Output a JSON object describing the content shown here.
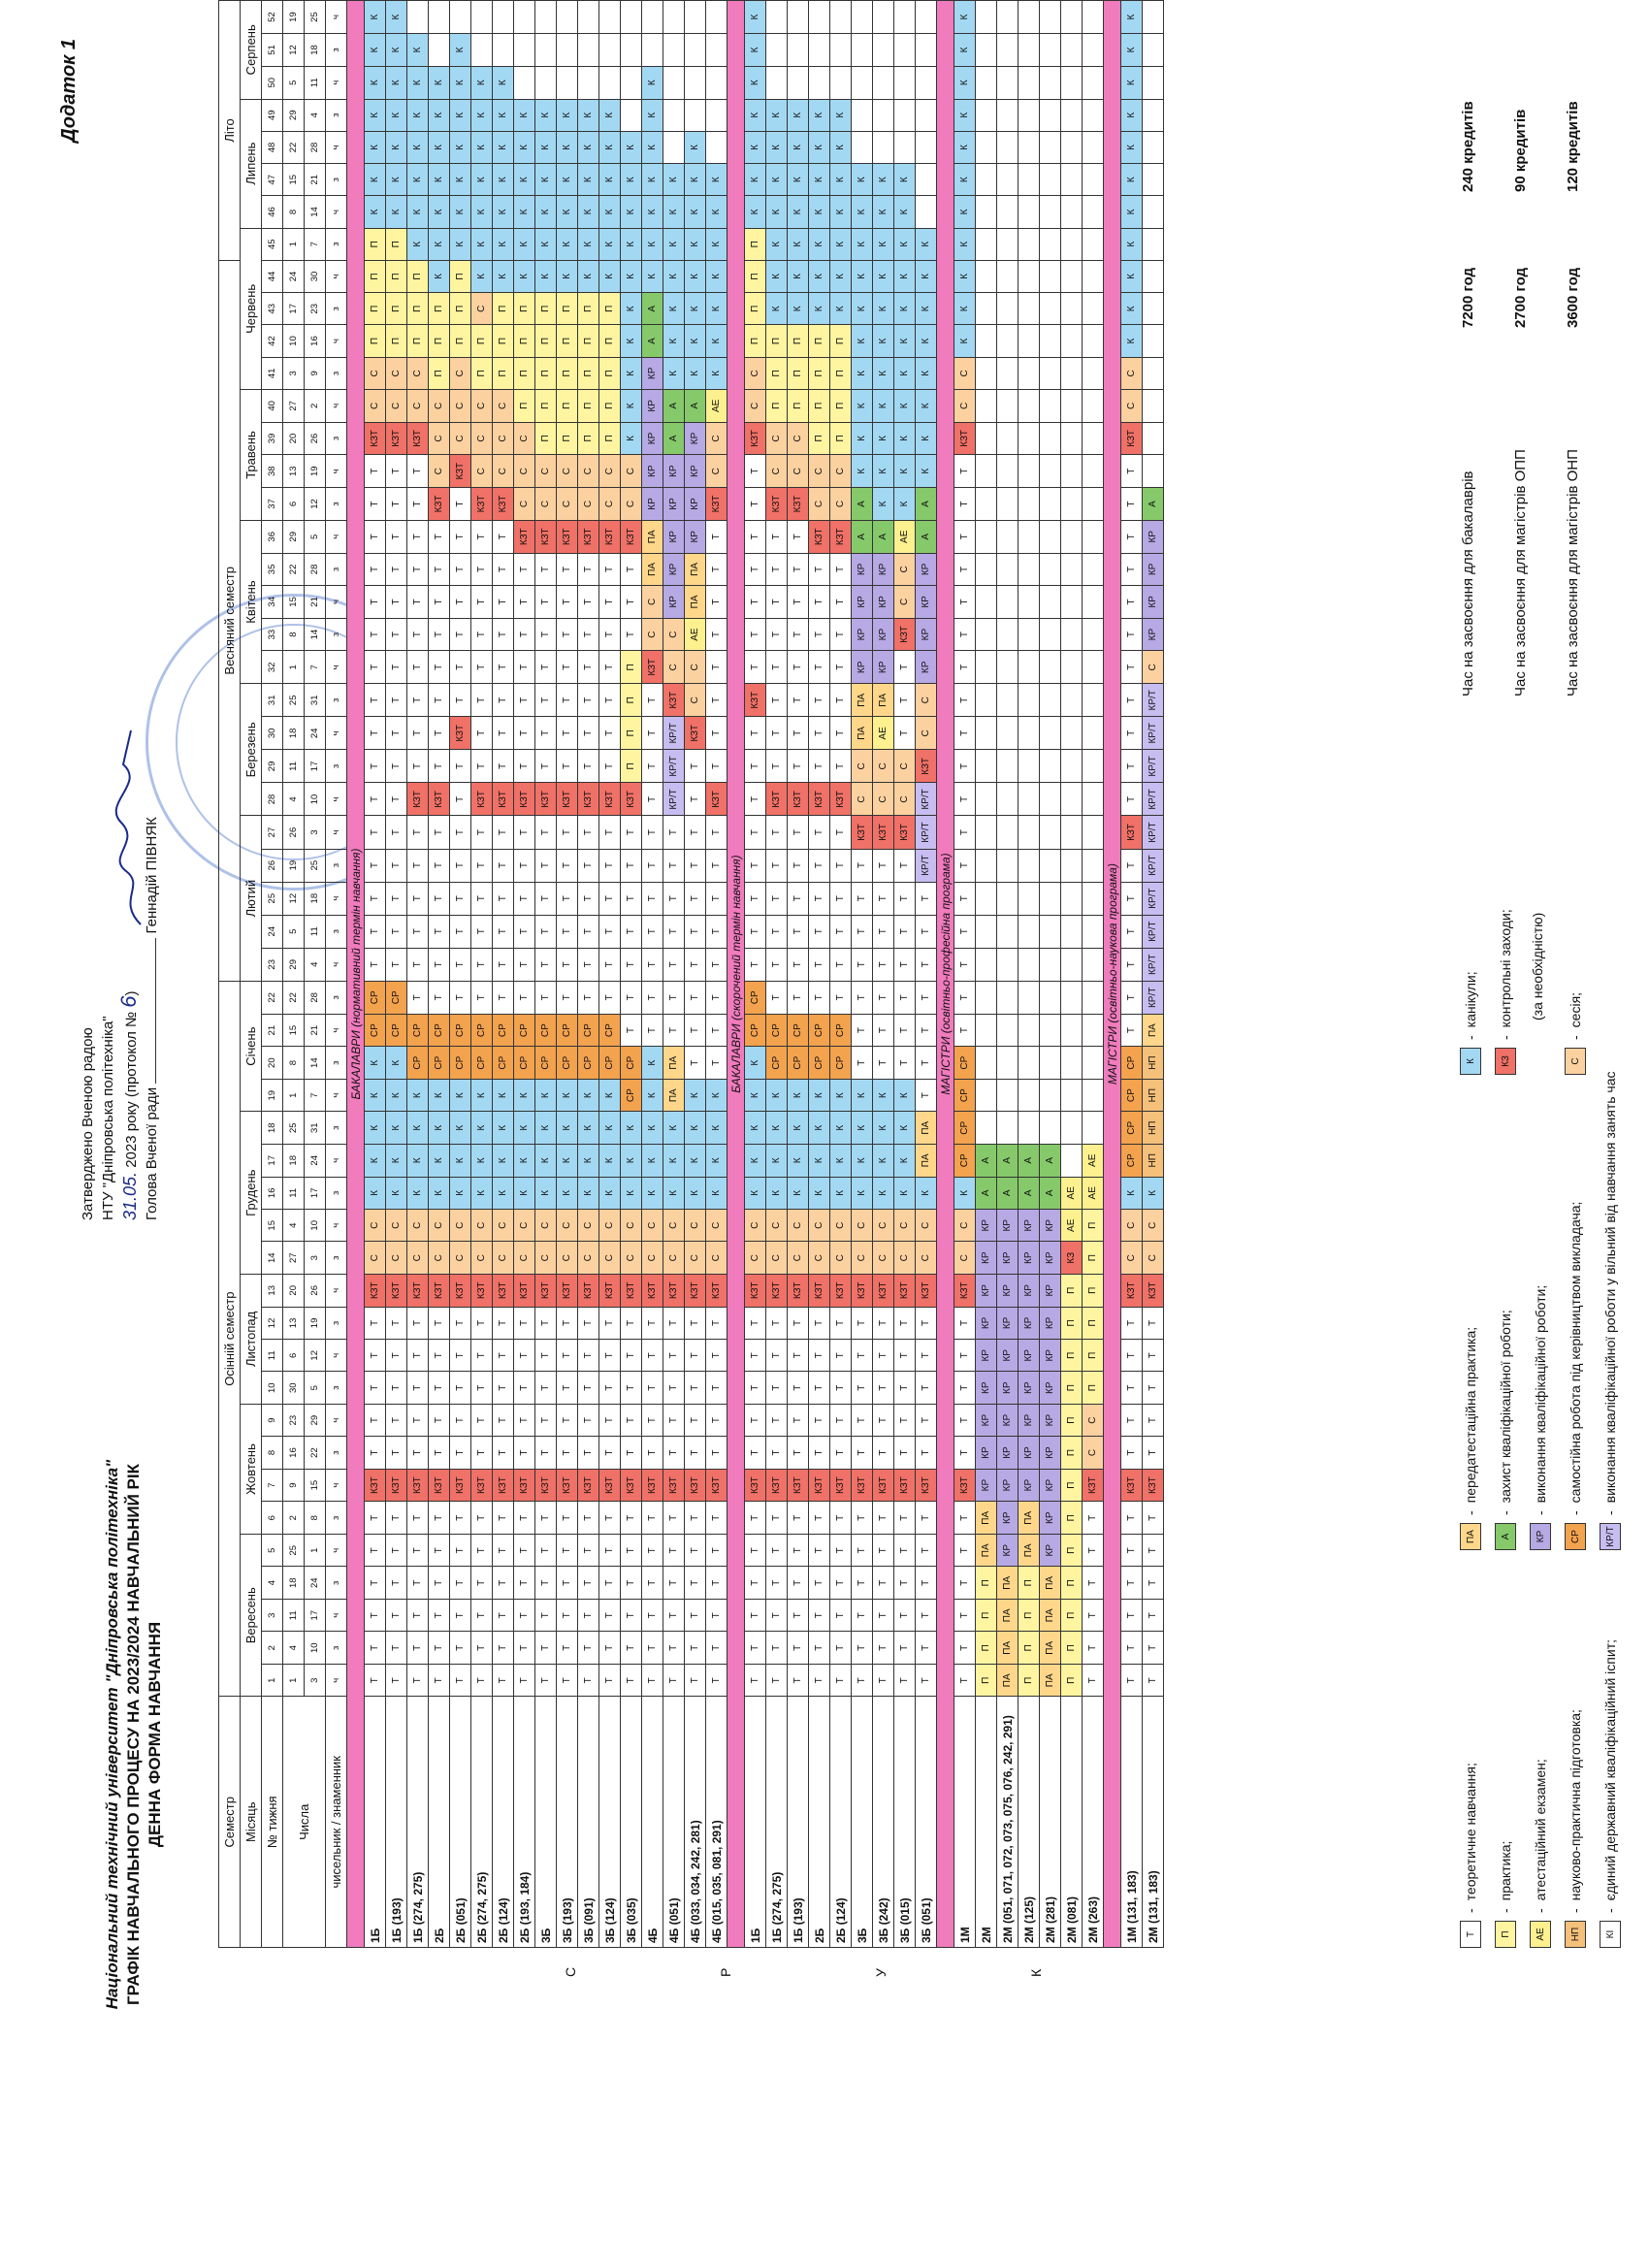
{
  "header": {
    "annex": "Додаток 1",
    "approved_lines": [
      "Затверджено Вченою радою",
      "НТУ \"Дніпровська політехніка\""
    ],
    "approved_date": "31.05.",
    "approved_year_text": "2023 року (протокол №",
    "protocol_number": "6",
    "signer_line": "Голова Вченої ради",
    "signer_name": "Геннадій ПІВНЯК",
    "university": "Національний технічний університет \"Дніпровська політехніка\"",
    "title": "ГРАФІК НАВЧАЛЬНОГО ПРОЦЕСУ НА 2023/2024 НАВЧАЛЬНИЙ РІК",
    "subtitle": "ДЕННА ФОРМА НАВЧАННЯ"
  },
  "labels": {
    "semester": "Семестр",
    "month": "Місяць",
    "week_no": "№ тижня",
    "dates": "Числа",
    "numerator": "чисельник / знаменник",
    "autumn": "Осінній семестр",
    "spring": "Весняний семестр",
    "summer": "Літо"
  },
  "months": [
    {
      "name": "Вересень",
      "span": 5
    },
    {
      "name": "Жовтень",
      "span": 4
    },
    {
      "name": "Листопад",
      "span": 4
    },
    {
      "name": "Грудень",
      "span": 5
    },
    {
      "name": "Січень",
      "span": 4
    },
    {
      "name": "Лютий",
      "span": 5
    },
    {
      "name": "Березень",
      "span": 4
    },
    {
      "name": "Квітень",
      "span": 5
    },
    {
      "name": "Травень",
      "span": 4
    },
    {
      "name": "Червень",
      "span": 5
    },
    {
      "name": "Липень",
      "span": 4
    },
    {
      "name": "Серпень",
      "span": 3
    }
  ],
  "weeks": [
    "1",
    "2",
    "3",
    "4",
    "5",
    "6",
    "7",
    "8",
    "9",
    "10",
    "11",
    "12",
    "13",
    "14",
    "15",
    "16",
    "17",
    "18",
    "19",
    "20",
    "21",
    "22",
    "23",
    "24",
    "25",
    "26",
    "27",
    "28",
    "29",
    "30",
    "31",
    "32",
    "33",
    "34",
    "35",
    "36",
    "37",
    "38",
    "39",
    "40",
    "41",
    "42",
    "43",
    "44",
    "45",
    "46",
    "47",
    "48",
    "49",
    "50",
    "51",
    "52"
  ],
  "dates_row1": [
    "1",
    "4",
    "11",
    "18",
    "25",
    "2",
    "9",
    "16",
    "23",
    "30",
    "6",
    "13",
    "20",
    "27",
    "4",
    "11",
    "18",
    "25",
    "1",
    "8",
    "15",
    "22",
    "29",
    "5",
    "12",
    "19",
    "26",
    "4",
    "11",
    "18",
    "25",
    "1",
    "8",
    "15",
    "22",
    "29",
    "6",
    "13",
    "20",
    "27",
    "3",
    "10",
    "17",
    "24",
    "1",
    "8",
    "15",
    "22",
    "29",
    "5",
    "12",
    "19"
  ],
  "dates_row2": [
    "3",
    "10",
    "17",
    "24",
    "1",
    "8",
    "15",
    "22",
    "29",
    "5",
    "12",
    "19",
    "26",
    "3",
    "10",
    "17",
    "24",
    "31",
    "7",
    "14",
    "21",
    "28",
    "4",
    "11",
    "18",
    "25",
    "3",
    "10",
    "17",
    "24",
    "31",
    "7",
    "14",
    "21",
    "28",
    "5",
    "12",
    "19",
    "26",
    "2",
    "9",
    "16",
    "23",
    "30",
    "7",
    "14",
    "21",
    "28",
    "4",
    "11",
    "18",
    "25"
  ],
  "numer": [
    "ч",
    "з",
    "ч",
    "з",
    "ч",
    "з",
    "ч",
    "з",
    "ч",
    "з",
    "ч",
    "з",
    "ч",
    "з",
    "ч",
    "з",
    "ч",
    "з",
    "ч",
    "з",
    "ч",
    "з",
    "ч",
    "з",
    "ч",
    "з",
    "ч",
    "ч",
    "з",
    "ч",
    "з",
    "ч",
    "з",
    "ч",
    "з",
    "ч",
    "з",
    "ч",
    "з",
    "ч",
    "з",
    "ч",
    "з",
    "ч",
    "з",
    "ч",
    "з",
    "ч",
    "з",
    "ч",
    "з",
    "ч"
  ],
  "sections": [
    {
      "title": "БАКАЛАВРИ (нормативний термін навчання)",
      "rows": [
        {
          "name": "1Б",
          "weeks": "T T T T T T КЗТ T T T T T КЗТ С С К К К К К СР СР T T T T T T T T T T T T T T T T КЗТ С С П П П П К К К К К К К"
        },
        {
          "name": "1Б (193)",
          "weeks": "T T T T T T КЗТ T T T T T КЗТ С С К К К К К СР СР T T T T T T T T T T T T T T T T КЗТ С С П П П П К К К К К К К"
        },
        {
          "name": "1Б (274, 275)",
          "weeks": "T T T T T T КЗТ T T T T T КЗТ С С К К К К СР СР T T T T T T КЗТ T T T T T T T T T T КЗТ С С П П П К К К К К К К"
        },
        {
          "name": "2Б",
          "weeks": "T T T T T T КЗТ T T T T T КЗТ С С К К К К СР СР T T T T T T КЗТ T T T T T T T T КЗТ С С С П П П К К К К К К К"
        },
        {
          "name": "2Б (051)",
          "weeks": "T T T T T T КЗТ T T T T T КЗТ С С К К К К СР СР T T T T T T T T КЗТ T T T T T T T КЗТ С С С П П П К К К К К К К"
        },
        {
          "name": "2Б (274, 275)",
          "weeks": "T T T T T T КЗТ T T T T T КЗТ С С К К К К СР СР T T T T T T КЗТ T T T T T T T T КЗТ С С С П П С К К К К К К К"
        },
        {
          "name": "2Б (124)",
          "weeks": "T T T T T T КЗТ T T T T T КЗТ С С К К К К СР СР T T T T T T КЗТ T T T T T T T T КЗТ С С С П П П К К К К К К К"
        },
        {
          "name": "2Б (193, 184)",
          "weeks": "T T T T T T КЗТ T T T T T КЗТ С С К К К К СР СР T T T T T T КЗТ T T T T T T T КЗТ С С С П П П П К К К К К К"
        },
        {
          "name": "3Б",
          "weeks": "T T T T T T КЗТ T T T T T КЗТ С С К К К К СР СР T T T T T T КЗТ T T T T T T T КЗТ С С П П П П П К К К К К К"
        },
        {
          "name": "3Б (193)",
          "weeks": "T T T T T T КЗТ T T T T T КЗТ С С К К К К СР СР T T T T T T КЗТ T T T T T T T КЗТ С С П П П П П К К К К К К"
        },
        {
          "name": "3Б (091)",
          "weeks": "T T T T T T КЗТ T T T T T КЗТ С С К К К К СР СР T T T T T T КЗТ T T T T T T T КЗТ С С П П П П П К К К К К К"
        },
        {
          "name": "3Б (124)",
          "weeks": "T T T T T T КЗТ T T T T T КЗТ С С К К К К СР СР T T T T T T КЗТ T T T T T T T КЗТ С С П П П П П К К К К К К"
        },
        {
          "name": "3Б (035)",
          "weeks": "T T T T T T КЗТ T T T T T КЗТ С С К К К СР СР T T T T T T T КЗТ П П П П T T T КЗТ С С К К К К К К К К К К"
        },
        {
          "name": "4Б",
          "weeks": "T T T T T T КЗТ T T T T T КЗТ С С К К К К К T T T T T T T T T T T КЗТ С С ПА ПА КР КР КР КР КР А А К К К К К К К"
        },
        {
          "name": "4Б (051)",
          "weeks": "T T T T T T КЗТ T T T T T КЗТ С С К К К ПА ПА T T T T T T T КР/Т КР/Т КР/Т КЗТ С С КР КР КР КР КР А А К К К К К К К"
        },
        {
          "name": "4Б (033, 034, 242, 281)",
          "weeks": "T T T T T T КЗТ T T T T T КЗТ С С К К К К T T T T T T T T T T КЗТ С С АЕ ПА ПА КР КР КР КР А К К К К К К К К"
        },
        {
          "name": "4Б (015, 035, 081, 291)",
          "weeks": "T T T T T T КЗТ T T T T T КЗТ С С К К К К T T T T T T T T КЗТ T T T T T T T T КЗТ С С АЕ К К К К К К К"
        }
      ]
    },
    {
      "title": "БАКАЛАВРИ (скорочений термін навчання)",
      "rows": [
        {
          "name": "1Б",
          "weeks": "T T T T T T КЗТ T T T T T КЗТ С С К К К К К СР СР T T T T T T T T КЗТ T T T T T T T КЗТ С С П П П П К К К К К К К"
        },
        {
          "name": "1Б (274, 275)",
          "weeks": "T T T T T T КЗТ T T T T T КЗТ С С К К К К СР СР T T T T T T КЗТ T T T T T T T T КЗТ С С П П П К К К К К К К"
        },
        {
          "name": "1Б (193)",
          "weeks": "T T T T T T КЗТ T T T T T КЗТ С С К К К К СР СР T T T T T T КЗТ T T T T T T T T КЗТ С С П П П К К К К К К К"
        },
        {
          "name": "2Б",
          "weeks": "T T T T T T КЗТ T T T T T КЗТ С С К К К К СР СР T T T T T T КЗТ T T T T T T T КЗТ С С П П П П К К К К К К К"
        },
        {
          "name": "2Б (124)",
          "weeks": "T T T T T T КЗТ T T T T T КЗТ С С К К К К СР СР T T T T T T КЗТ T T T T T T T КЗТ С С П П П П К К К К К К К"
        },
        {
          "name": "3Б",
          "weeks": "T T T T T T КЗТ T T T T T КЗТ С С К К К К T T T T T T T КЗТ С С ПА ПА КР КР КР КР А А К К К К К К К К К К"
        },
        {
          "name": "3Б (242)",
          "weeks": "T T T T T T КЗТ T T T T T КЗТ С С К К К К T T T T T T T КЗТ С С АЕ ПА КР КР КР КР А К К К К К К К К К К К"
        },
        {
          "name": "3Б (015)",
          "weeks": "T T T T T T КЗТ T T T T T КЗТ С С К К К К T T T T T T T КЗТ С С T T T КЗТ С С АЕ К К К К К К К К К К К"
        },
        {
          "name": "3Б (051)",
          "weeks": "T T T T T T КЗТ T T T T T КЗТ С С К ПА ПА T T T T T T T КР/Т КР/Т КР/Т КЗТ С С КР КР КР КР А А К К К К К К К К"
        }
      ]
    },
    {
      "title": "МАГІСТРИ (освітньо-професійна програма)",
      "rows": [
        {
          "name": "1М",
          "weeks": "T T T T T T КЗТ T T T T T КЗТ С С К СР СР СР СР T T T T T T T T T T T T T T T T T T КЗТ С С К К К К К К К К К К К"
        },
        {
          "name": "2М",
          "weeks": "П П П П ПА ПА КР КР КР КР КР КР КР КР КР А А"
        },
        {
          "name": "2М (051, 071, 072, 073, 075, 076, 242, 291)",
          "weeks": "ПА ПА ПА ПА КР КР КР КР КР КР КР КР КР КР КР А А"
        },
        {
          "name": "2М (125)",
          "weeks": "П П П П ПА ПА КР КР КР КР КР КР КР КР КР А А"
        },
        {
          "name": "2М (281)",
          "weeks": "ПА ПА ПА ПА КР КР КР КР КР КР КР КР КР КР КР А А"
        },
        {
          "name": "2М (081)",
          "weeks": "П П П П П П П П П П П П П КЗ АЕ АЕ"
        },
        {
          "name": "2М (263)",
          "weeks": "T T T T T T КЗТ С С П П П П П П АЕ АЕ"
        }
      ]
    },
    {
      "title": "МАГІСТРИ (освітньо-наукова програма)",
      "rows": [
        {
          "name": "1М (131, 183)",
          "weeks": "T T T T T T КЗТ T T T T T КЗТ С С К СР СР СР СР T T T T T T КЗТ T T T T T T T T T T T КЗТ С С К К К К К К К К К К К"
        },
        {
          "name": "2М (131, 183)",
          "weeks": "T T T T T T КЗТ T T T T T КЗТ С С К НП НП НП НП ПА КР/Т КР/Т КР/Т КР/Т КР/Т КР/Т КР/Т КР/Т КР/Т КР/Т С КР КР КР КР А"
        }
      ]
    }
  ],
  "legend": [
    {
      "code": "T",
      "text": "теоретичне навчання;",
      "color": "#ffffff"
    },
    {
      "code": "П",
      "text": "практика;",
      "color": "#fff5a1"
    },
    {
      "code": "АЕ",
      "text": "атестаційний екзамен;",
      "color": "#fcf08f"
    },
    {
      "code": "НП",
      "text": "науково-практична підготовка;",
      "color": "#f4c07a"
    },
    {
      "code": "КІ",
      "text": "єдиний державний кваліфікаційний іспит;",
      "color": "#ffffff"
    },
    {
      "code": "ПА",
      "text": "передатестаційна практика;",
      "color": "#ffd78a"
    },
    {
      "code": "А",
      "text": "захист кваліфікаційної роботи;",
      "color": "#86c96b"
    },
    {
      "code": "КР",
      "text": "виконання кваліфікаційної роботи;",
      "color": "#b7a9e4"
    },
    {
      "code": "СР",
      "text": "самостійна робота під керівництвом викладача;",
      "color": "#f3a24e"
    },
    {
      "code": "КР/Т",
      "text": "виконання кваліфікаційної роботи у вільний від навчання занять час",
      "color": "#c7bdf0"
    },
    {
      "code": "К",
      "text": "канікули;",
      "color": "#a3d8f2"
    },
    {
      "code": "КЗ",
      "text": "контрольні заходи;",
      "color": "#f07167"
    },
    {
      "code": "",
      "text": "(за необхідністю)",
      "color": ""
    },
    {
      "code": "С",
      "text": "сесія;",
      "color": "#fcd1a0"
    }
  ],
  "credits": [
    {
      "label": "Час на засвоєння для бакалаврів",
      "hours": "7200 год",
      "credits": "240 кредитів"
    },
    {
      "label": "Час на засвоєння для магістрів ОПП",
      "hours": "2700 год",
      "credits": "90 кредитів"
    },
    {
      "label": "Час на засвоєння для магістрів ОНП",
      "hours": "3600 год",
      "credits": "120 кредитів"
    }
  ],
  "side_letters": [
    "С",
    "Р",
    "У",
    "К"
  ]
}
